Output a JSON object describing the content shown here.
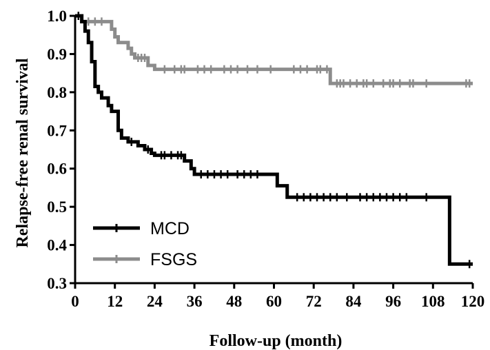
{
  "chart_data": {
    "type": "line",
    "subtype": "kaplan-meier step survival curve",
    "title": "",
    "xlabel": "Follow-up (month)",
    "ylabel": "Relapse-free renal survival",
    "xlim": [
      0,
      120
    ],
    "ylim": [
      0.3,
      1.0
    ],
    "xticks": [
      0,
      12,
      24,
      36,
      48,
      60,
      72,
      84,
      96,
      108,
      120
    ],
    "yticks": [
      0.3,
      0.4,
      0.5,
      0.6,
      0.7,
      0.8,
      0.9,
      1.0
    ],
    "ytick_labels": [
      "0.3",
      "0.4",
      "0.5",
      "0.6",
      "0.7",
      "0.8",
      "0.9",
      "1.0"
    ],
    "grid": false,
    "legend": {
      "position": "bottom-left"
    },
    "series": [
      {
        "name": "MCD",
        "color": "#000000",
        "steps": [
          [
            0,
            1.0
          ],
          [
            2,
            0.985
          ],
          [
            3,
            0.96
          ],
          [
            4,
            0.93
          ],
          [
            5,
            0.88
          ],
          [
            6,
            0.815
          ],
          [
            7,
            0.8
          ],
          [
            8,
            0.785
          ],
          [
            10,
            0.765
          ],
          [
            11,
            0.75
          ],
          [
            13,
            0.7
          ],
          [
            14,
            0.68
          ],
          [
            16,
            0.67
          ],
          [
            19,
            0.66
          ],
          [
            21,
            0.65
          ],
          [
            23,
            0.64
          ],
          [
            24,
            0.635
          ],
          [
            33,
            0.62
          ],
          [
            35,
            0.6
          ],
          [
            36,
            0.585
          ],
          [
            61,
            0.555
          ],
          [
            64,
            0.525
          ],
          [
            113,
            0.35
          ],
          [
            120,
            0.35
          ]
        ],
        "censored": [
          1,
          17,
          22,
          26,
          27,
          29,
          31,
          32,
          38,
          40,
          42,
          44,
          46,
          49,
          51,
          53,
          55,
          67,
          69,
          71,
          73,
          75,
          77,
          79,
          82,
          86,
          88,
          90,
          92,
          94,
          96,
          98,
          100,
          106,
          119
        ]
      },
      {
        "name": "FSGS",
        "color": "#8c8c8c",
        "steps": [
          [
            0,
            1.0
          ],
          [
            2,
            0.985
          ],
          [
            11,
            0.965
          ],
          [
            12,
            0.945
          ],
          [
            13,
            0.93
          ],
          [
            16,
            0.915
          ],
          [
            17,
            0.9
          ],
          [
            18,
            0.89
          ],
          [
            22,
            0.87
          ],
          [
            24,
            0.86
          ],
          [
            77,
            0.823
          ],
          [
            120,
            0.823
          ]
        ],
        "censored": [
          4,
          6,
          8,
          19,
          20,
          21,
          27,
          30,
          32,
          33,
          37,
          39,
          41,
          45,
          47,
          49,
          52,
          55,
          59,
          66,
          68,
          70,
          73,
          74,
          76,
          79,
          80,
          81,
          83,
          85,
          87,
          88,
          90,
          93,
          95,
          96,
          98,
          101,
          102,
          106,
          118,
          119
        ]
      }
    ]
  }
}
